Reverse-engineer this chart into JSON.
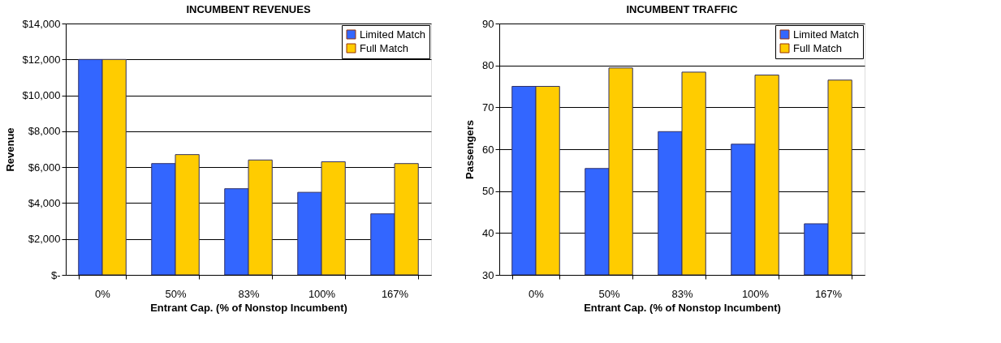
{
  "chart_data": [
    {
      "type": "bar",
      "title": "INCUMBENT REVENUES",
      "xlabel": "Entrant Cap. (% of Nonstop Incumbent)",
      "ylabel": "Revenue",
      "categories": [
        "0%",
        "50%",
        "83%",
        "100%",
        "167%"
      ],
      "series": [
        {
          "name": "Limited Match",
          "color": "#3366ff",
          "values": [
            12000,
            6200,
            4800,
            4600,
            3400
          ]
        },
        {
          "name": "Full Match",
          "color": "#ffcc00",
          "values": [
            12000,
            6700,
            6400,
            6300,
            6200
          ]
        }
      ],
      "ylim": [
        0,
        14000
      ],
      "yticks": [
        {
          "value": 0,
          "label": "$-"
        },
        {
          "value": 2000,
          "label": "$2,000"
        },
        {
          "value": 4000,
          "label": "$4,000"
        },
        {
          "value": 6000,
          "label": "$6,000"
        },
        {
          "value": 8000,
          "label": "$8,000"
        },
        {
          "value": 10000,
          "label": "$10,000"
        },
        {
          "value": 12000,
          "label": "$12,000"
        },
        {
          "value": 14000,
          "label": "$14,000"
        }
      ],
      "grid": "y",
      "legend": "top right"
    },
    {
      "type": "bar",
      "title": "INCUMBENT TRAFFIC",
      "xlabel": "Entrant Cap. (% of Nonstop Incumbent)",
      "ylabel": "Passengers",
      "categories": [
        "0%",
        "50%",
        "83%",
        "100%",
        "167%"
      ],
      "series": [
        {
          "name": "Limited Match",
          "color": "#3366ff",
          "values": [
            75,
            55.4,
            64.2,
            61.2,
            42.2
          ]
        },
        {
          "name": "Full Match",
          "color": "#ffcc00",
          "values": [
            75,
            79.4,
            78.4,
            77.7,
            76.5
          ]
        }
      ],
      "ylim": [
        30,
        90
      ],
      "yticks": [
        30,
        40,
        50,
        60,
        70,
        80,
        90
      ],
      "grid": "y",
      "legend": "top right"
    }
  ]
}
